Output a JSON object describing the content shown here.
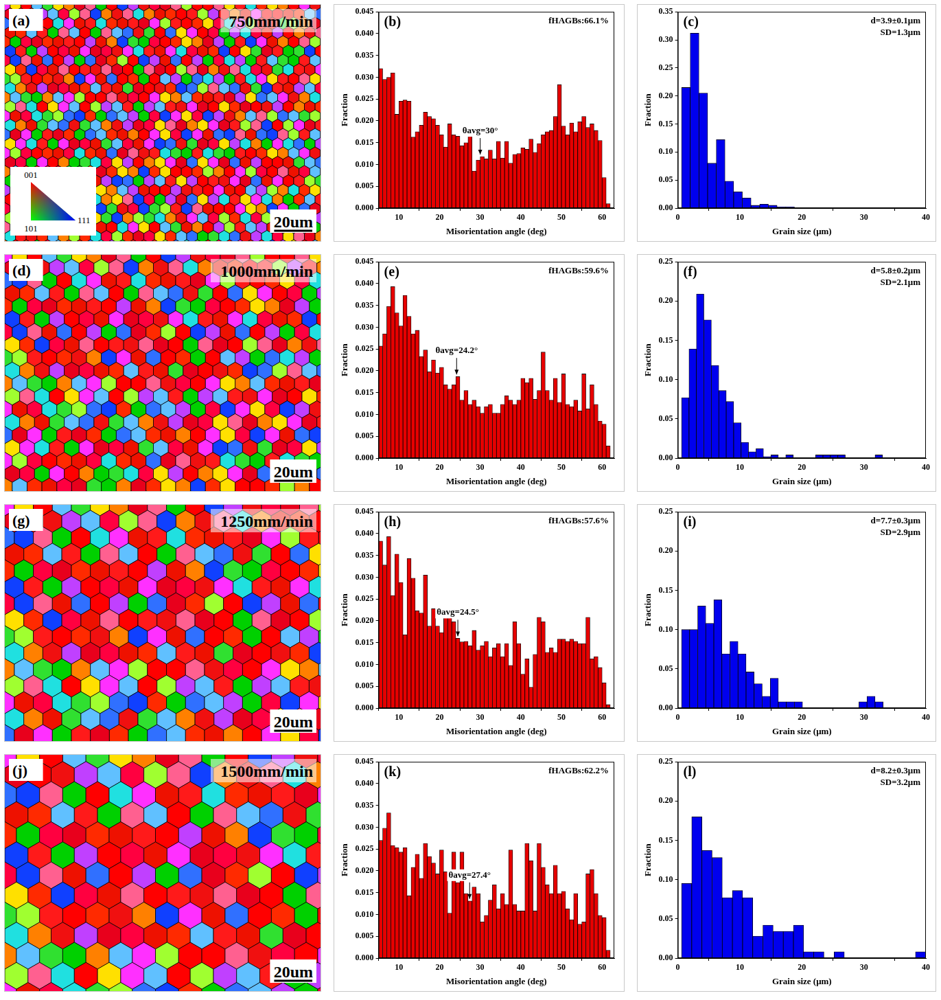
{
  "maps": [
    {
      "panel_label": "(a)",
      "speed": "750mm/min",
      "scale_bar": "20um",
      "ipf_legend": [
        "001",
        "101",
        "111"
      ]
    },
    {
      "panel_label": "(d)",
      "speed": "1000mm/min",
      "scale_bar": "20um"
    },
    {
      "panel_label": "(g)",
      "speed": "1250mm/min",
      "scale_bar": "20um"
    },
    {
      "panel_label": "(j)",
      "speed": "1500mm/min",
      "scale_bar": "20um"
    }
  ],
  "chart_data": [
    {
      "type": "histogram",
      "panel_label": "(b)",
      "x_label": "Misorientation angle (deg)",
      "y_label": "Fraction",
      "color": "#e60000",
      "grid": false,
      "bins": [
        5,
        6,
        7,
        8,
        9,
        10,
        11,
        12,
        13,
        14,
        15,
        16,
        17,
        18,
        19,
        20,
        21,
        22,
        23,
        24,
        25,
        26,
        27,
        28,
        29,
        30,
        31,
        32,
        33,
        34,
        35,
        36,
        37,
        38,
        39,
        40,
        41,
        42,
        43,
        44,
        45,
        46,
        47,
        48,
        49,
        50,
        51,
        52,
        53,
        54,
        55,
        56,
        57,
        58,
        59,
        60,
        61,
        62
      ],
      "values": [
        0.032,
        0.0295,
        0.03,
        0.031,
        0.0215,
        0.0245,
        0.0248,
        0.0245,
        0.0163,
        0.0175,
        0.019,
        0.022,
        0.021,
        0.0205,
        0.019,
        0.0168,
        0.014,
        0.0193,
        0.0168,
        0.0165,
        0.0143,
        0.015,
        0.0175,
        0.0085,
        0.011,
        0.0118,
        0.0113,
        0.0133,
        0.0113,
        0.0153,
        0.0115,
        0.0153,
        0.0103,
        0.0123,
        0.0125,
        0.0138,
        0.0135,
        0.0158,
        0.0128,
        0.0148,
        0.0168,
        0.0175,
        0.0178,
        0.021,
        0.0283,
        0.0188,
        0.0168,
        0.0195,
        0.0175,
        0.0198,
        0.021,
        0.0185,
        0.0193,
        0.0178,
        0.0155,
        0.007,
        0.001
      ],
      "xlim": [
        5,
        63
      ],
      "xticks": [
        10,
        20,
        30,
        40,
        50,
        60
      ],
      "ylim": [
        0,
        0.045
      ],
      "yticks": [
        {
          "value": 0,
          "label": "0.000"
        },
        {
          "value": 0.005,
          "label": "0.005"
        },
        {
          "value": 0.01,
          "label": "0.010"
        },
        {
          "value": 0.015,
          "label": "0.015"
        },
        {
          "value": 0.02,
          "label": "0.020"
        },
        {
          "value": 0.025,
          "label": "0.025"
        },
        {
          "value": 0.03,
          "label": "0.030"
        },
        {
          "value": 0.035,
          "label": "0.035"
        },
        {
          "value": 0.04,
          "label": "0.040"
        },
        {
          "value": 0.045,
          "label": "0.045"
        }
      ],
      "annotations": [
        {
          "text": "θavg=30°",
          "x": 30
        }
      ],
      "corner_text": [
        "fHAGBs:66.1%"
      ]
    },
    {
      "type": "histogram",
      "panel_label": "(c)",
      "x_label": "Grain size (μm)",
      "y_label": "Fraction",
      "color": "#0000ee",
      "grid": false,
      "bins": [
        0.6,
        2.0,
        3.4,
        4.8,
        6.2,
        7.6,
        9.0,
        10.4,
        11.8,
        13.2,
        14.6,
        16.0,
        17.4,
        18.8
      ],
      "values": [
        0.215,
        0.312,
        0.205,
        0.08,
        0.122,
        0.048,
        0.029,
        0.018,
        0.005,
        0.007,
        0.005,
        0.002,
        0.002
      ],
      "xlim": [
        0,
        40
      ],
      "xticks": [
        0,
        10,
        20,
        30,
        40
      ],
      "ylim": [
        0,
        0.35
      ],
      "yticks": [
        {
          "value": 0,
          "label": "0.00"
        },
        {
          "value": 0.05,
          "label": "0.05"
        },
        {
          "value": 0.1,
          "label": "0.10"
        },
        {
          "value": 0.15,
          "label": "0.15"
        },
        {
          "value": 0.2,
          "label": "0.20"
        },
        {
          "value": 0.25,
          "label": "0.25"
        },
        {
          "value": 0.3,
          "label": "0.30"
        },
        {
          "value": 0.35,
          "label": "0.35"
        }
      ],
      "corner_text": [
        "d=3.9±0.1μm",
        "SD=1.3μm"
      ]
    },
    {
      "type": "histogram",
      "panel_label": "(e)",
      "x_label": "Misorientation angle (deg)",
      "y_label": "Fraction",
      "color": "#e60000",
      "grid": false,
      "bins": [
        5,
        6,
        7,
        8,
        9,
        10,
        11,
        12,
        13,
        14,
        15,
        16,
        17,
        18,
        19,
        20,
        21,
        22,
        23,
        24,
        25,
        26,
        27,
        28,
        29,
        30,
        31,
        32,
        33,
        34,
        35,
        36,
        37,
        38,
        39,
        40,
        41,
        42,
        43,
        44,
        45,
        46,
        47,
        48,
        49,
        50,
        51,
        52,
        53,
        54,
        55,
        56,
        57,
        58,
        59,
        60,
        61,
        62
      ],
      "values": [
        0.0257,
        0.0285,
        0.0348,
        0.0393,
        0.0333,
        0.0303,
        0.0373,
        0.0325,
        0.0285,
        0.0293,
        0.0233,
        0.0248,
        0.0198,
        0.0225,
        0.0195,
        0.0208,
        0.0168,
        0.0158,
        0.0168,
        0.0187,
        0.0133,
        0.0155,
        0.0123,
        0.0133,
        0.0118,
        0.0103,
        0.0118,
        0.0123,
        0.0103,
        0.0103,
        0.0123,
        0.0143,
        0.0133,
        0.0123,
        0.0133,
        0.0183,
        0.0173,
        0.0183,
        0.0135,
        0.0155,
        0.0243,
        0.0155,
        0.0133,
        0.0183,
        0.0128,
        0.0193,
        0.0123,
        0.0118,
        0.0133,
        0.0108,
        0.0193,
        0.0113,
        0.0168,
        0.0123,
        0.0085,
        0.0078,
        0.0028
      ],
      "xlim": [
        5,
        63
      ],
      "xticks": [
        10,
        20,
        30,
        40,
        50,
        60
      ],
      "ylim": [
        0,
        0.045
      ],
      "yticks": [
        {
          "value": 0,
          "label": "0.000"
        },
        {
          "value": 0.005,
          "label": "0.005"
        },
        {
          "value": 0.01,
          "label": "0.010"
        },
        {
          "value": 0.015,
          "label": "0.015"
        },
        {
          "value": 0.02,
          "label": "0.020"
        },
        {
          "value": 0.025,
          "label": "0.025"
        },
        {
          "value": 0.03,
          "label": "0.030"
        },
        {
          "value": 0.035,
          "label": "0.035"
        },
        {
          "value": 0.04,
          "label": "0.040"
        },
        {
          "value": 0.045,
          "label": "0.045"
        }
      ],
      "annotations": [
        {
          "text": "θavg=24.2°",
          "x": 24.2
        }
      ],
      "corner_text": [
        "fHAGBs:59.6%"
      ]
    },
    {
      "type": "histogram",
      "panel_label": "(f)",
      "x_label": "Grain size (μm)",
      "y_label": "Fraction",
      "color": "#0000ee",
      "grid": false,
      "bins": [
        0.6,
        1.8,
        3.0,
        4.2,
        5.4,
        6.6,
        7.8,
        9.0,
        10.2,
        11.4,
        12.6,
        13.8,
        15.0,
        16.2,
        17.4,
        18.6,
        19.8,
        21.0,
        22.2,
        23.4,
        24.6,
        25.8,
        27.0,
        28.2,
        29.4,
        30.6,
        31.8,
        33.0
      ],
      "values": [
        0.077,
        0.139,
        0.209,
        0.176,
        0.118,
        0.086,
        0.072,
        0.045,
        0.02,
        0.008,
        0.012,
        0.002,
        0.004,
        0,
        0.004,
        0,
        0,
        0,
        0.004,
        0.004,
        0.004,
        0.004,
        0,
        0,
        0,
        0,
        0.004
      ],
      "xlim": [
        0,
        40
      ],
      "xticks": [
        0,
        10,
        20,
        30,
        40
      ],
      "ylim": [
        0,
        0.25
      ],
      "yticks": [
        {
          "value": 0,
          "label": "0.00"
        },
        {
          "value": 0.05,
          "label": "0.05"
        },
        {
          "value": 0.1,
          "label": "0.10"
        },
        {
          "value": 0.15,
          "label": "0.15"
        },
        {
          "value": 0.2,
          "label": "0.20"
        },
        {
          "value": 0.25,
          "label": "0.25"
        }
      ],
      "corner_text": [
        "d=5.8±0.2μm",
        "SD=2.1μm"
      ]
    },
    {
      "type": "histogram",
      "panel_label": "(h)",
      "x_label": "Misorientation angle (deg)",
      "y_label": "Fraction",
      "color": "#e60000",
      "grid": false,
      "bins": [
        5,
        6,
        7,
        8,
        9,
        10,
        11,
        12,
        13,
        14,
        15,
        16,
        17,
        18,
        19,
        20,
        21,
        22,
        23,
        24,
        25,
        26,
        27,
        28,
        29,
        30,
        31,
        32,
        33,
        34,
        35,
        36,
        37,
        38,
        39,
        40,
        41,
        42,
        43,
        44,
        45,
        46,
        47,
        48,
        49,
        50,
        51,
        52,
        53,
        54,
        55,
        56,
        57,
        58,
        59,
        60,
        61,
        62
      ],
      "values": [
        0.0383,
        0.0328,
        0.0393,
        0.0258,
        0.0353,
        0.0288,
        0.0168,
        0.0343,
        0.0298,
        0.0223,
        0.0218,
        0.0305,
        0.0188,
        0.0228,
        0.0188,
        0.0173,
        0.0228,
        0.0213,
        0.0198,
        0.016,
        0.0152,
        0.0153,
        0.0143,
        0.0178,
        0.0133,
        0.0143,
        0.0153,
        0.0118,
        0.0138,
        0.0148,
        0.0118,
        0.0148,
        0.0098,
        0.0198,
        0.0148,
        0.0078,
        0.0113,
        0.0048,
        0.0123,
        0.0208,
        0.0198,
        0.0128,
        0.0138,
        0.0128,
        0.0158,
        0.0158,
        0.0153,
        0.0158,
        0.0153,
        0.0148,
        0.0148,
        0.0208,
        0.0113,
        0.0118,
        0.0093,
        0.0058,
        0.0008
      ],
      "xlim": [
        5,
        63
      ],
      "xticks": [
        10,
        20,
        30,
        40,
        50,
        60
      ],
      "ylim": [
        0,
        0.045
      ],
      "yticks": [
        {
          "value": 0,
          "label": "0.000"
        },
        {
          "value": 0.005,
          "label": "0.005"
        },
        {
          "value": 0.01,
          "label": "0.010"
        },
        {
          "value": 0.015,
          "label": "0.015"
        },
        {
          "value": 0.02,
          "label": "0.020"
        },
        {
          "value": 0.025,
          "label": "0.025"
        },
        {
          "value": 0.03,
          "label": "0.030"
        },
        {
          "value": 0.035,
          "label": "0.035"
        },
        {
          "value": 0.04,
          "label": "0.040"
        },
        {
          "value": 0.045,
          "label": "0.045"
        }
      ],
      "annotations": [
        {
          "text": "θavg=24.5°",
          "x": 24.5
        }
      ],
      "corner_text": [
        "fHAGBs:57.6%"
      ]
    },
    {
      "type": "histogram",
      "panel_label": "(i)",
      "x_label": "Grain size (μm)",
      "y_label": "Fraction",
      "color": "#0000ee",
      "grid": false,
      "bins": [
        0.6,
        1.9,
        3.2,
        4.5,
        5.8,
        7.1,
        8.4,
        9.7,
        11.0,
        12.3,
        13.6,
        14.9,
        16.2,
        17.5,
        18.8,
        20.1,
        21.4,
        22.7,
        24.0,
        25.3,
        26.6,
        27.9,
        29.2,
        30.5,
        31.8,
        33.1
      ],
      "values": [
        0.1,
        0.1,
        0.13,
        0.108,
        0.138,
        0.069,
        0.085,
        0.069,
        0.046,
        0.031,
        0.015,
        0.038,
        0.008,
        0.008,
        0.008,
        0,
        0,
        0,
        0,
        0,
        0,
        0,
        0.008,
        0.015,
        0.008
      ],
      "xlim": [
        0,
        40
      ],
      "xticks": [
        0,
        10,
        20,
        30,
        40
      ],
      "ylim": [
        0,
        0.25
      ],
      "yticks": [
        {
          "value": 0,
          "label": "0.00"
        },
        {
          "value": 0.05,
          "label": "0.05"
        },
        {
          "value": 0.1,
          "label": "0.10"
        },
        {
          "value": 0.15,
          "label": "0.15"
        },
        {
          "value": 0.2,
          "label": "0.20"
        },
        {
          "value": 0.25,
          "label": "0.25"
        }
      ],
      "corner_text": [
        "d=7.7±0.3μm",
        "SD=2.9μm"
      ]
    },
    {
      "type": "histogram",
      "panel_label": "(k)",
      "x_label": "Misorientation angle (deg)",
      "y_label": "Fraction",
      "color": "#e60000",
      "grid": false,
      "bins": [
        5,
        6,
        7,
        8,
        9,
        10,
        11,
        12,
        13,
        14,
        15,
        16,
        17,
        18,
        19,
        20,
        21,
        22,
        23,
        24,
        25,
        26,
        27,
        28,
        29,
        30,
        31,
        32,
        33,
        34,
        35,
        36,
        37,
        38,
        39,
        40,
        41,
        42,
        43,
        44,
        45,
        46,
        47,
        48,
        49,
        50,
        51,
        52,
        53,
        54,
        55,
        56,
        57,
        58,
        59,
        60,
        61,
        62
      ],
      "values": [
        0.027,
        0.0298,
        0.0333,
        0.0258,
        0.0253,
        0.0243,
        0.0253,
        0.0143,
        0.0208,
        0.0238,
        0.0183,
        0.0263,
        0.0233,
        0.0218,
        0.0193,
        0.0248,
        0.0198,
        0.0103,
        0.0243,
        0.0173,
        0.0243,
        0.0148,
        0.0131,
        0.0163,
        0.0148,
        0.0083,
        0.0098,
        0.0133,
        0.0168,
        0.0113,
        0.0148,
        0.0123,
        0.0248,
        0.0123,
        0.0108,
        0.0108,
        0.0263,
        0.0223,
        0.0108,
        0.0263,
        0.0208,
        0.0168,
        0.0148,
        0.0213,
        0.0148,
        0.0153,
        0.0113,
        0.0088,
        0.0148,
        0.0078,
        0.0083,
        0.0193,
        0.0203,
        0.0148,
        0.0098,
        0.0093,
        0.0018
      ],
      "xlim": [
        5,
        63
      ],
      "xticks": [
        10,
        20,
        30,
        40,
        50,
        60
      ],
      "ylim": [
        0,
        0.045
      ],
      "yticks": [
        {
          "value": 0,
          "label": "0.000"
        },
        {
          "value": 0.005,
          "label": "0.005"
        },
        {
          "value": 0.01,
          "label": "0.010"
        },
        {
          "value": 0.015,
          "label": "0.015"
        },
        {
          "value": 0.02,
          "label": "0.020"
        },
        {
          "value": 0.025,
          "label": "0.025"
        },
        {
          "value": 0.03,
          "label": "0.030"
        },
        {
          "value": 0.035,
          "label": "0.035"
        },
        {
          "value": 0.04,
          "label": "0.040"
        },
        {
          "value": 0.045,
          "label": "0.045"
        }
      ],
      "annotations": [
        {
          "text": "θavg=27.4°",
          "x": 27.4
        }
      ],
      "corner_text": [
        "fHAGBs:62.2%"
      ]
    },
    {
      "type": "histogram",
      "panel_label": "(l)",
      "x_label": "Grain size (μm)",
      "y_label": "Fraction",
      "color": "#0000ee",
      "grid": false,
      "bins": [
        0.6,
        2.24,
        3.88,
        5.52,
        7.16,
        8.8,
        10.44,
        12.08,
        13.72,
        15.36,
        17.0,
        18.64,
        20.28,
        21.92,
        23.56,
        25.2,
        26.84,
        28.48,
        30.12,
        31.76,
        33.4,
        35.04,
        36.68,
        38.32,
        39.96
      ],
      "values": [
        0.095,
        0.18,
        0.137,
        0.128,
        0.077,
        0.086,
        0.077,
        0.028,
        0.042,
        0.034,
        0.034,
        0.042,
        0.008,
        0.008,
        0,
        0.008,
        0,
        0,
        0,
        0,
        0,
        0,
        0,
        0.008
      ],
      "xlim": [
        0,
        40
      ],
      "xticks": [
        0,
        10,
        20,
        30,
        40
      ],
      "ylim": [
        0,
        0.25
      ],
      "yticks": [
        {
          "value": 0,
          "label": "0.00"
        },
        {
          "value": 0.05,
          "label": "0.05"
        },
        {
          "value": 0.1,
          "label": "0.10"
        },
        {
          "value": 0.15,
          "label": "0.15"
        },
        {
          "value": 0.2,
          "label": "0.20"
        },
        {
          "value": 0.25,
          "label": "0.25"
        }
      ],
      "corner_text": [
        "d=8.2±0.3μm",
        "SD=3.2μm"
      ]
    }
  ]
}
